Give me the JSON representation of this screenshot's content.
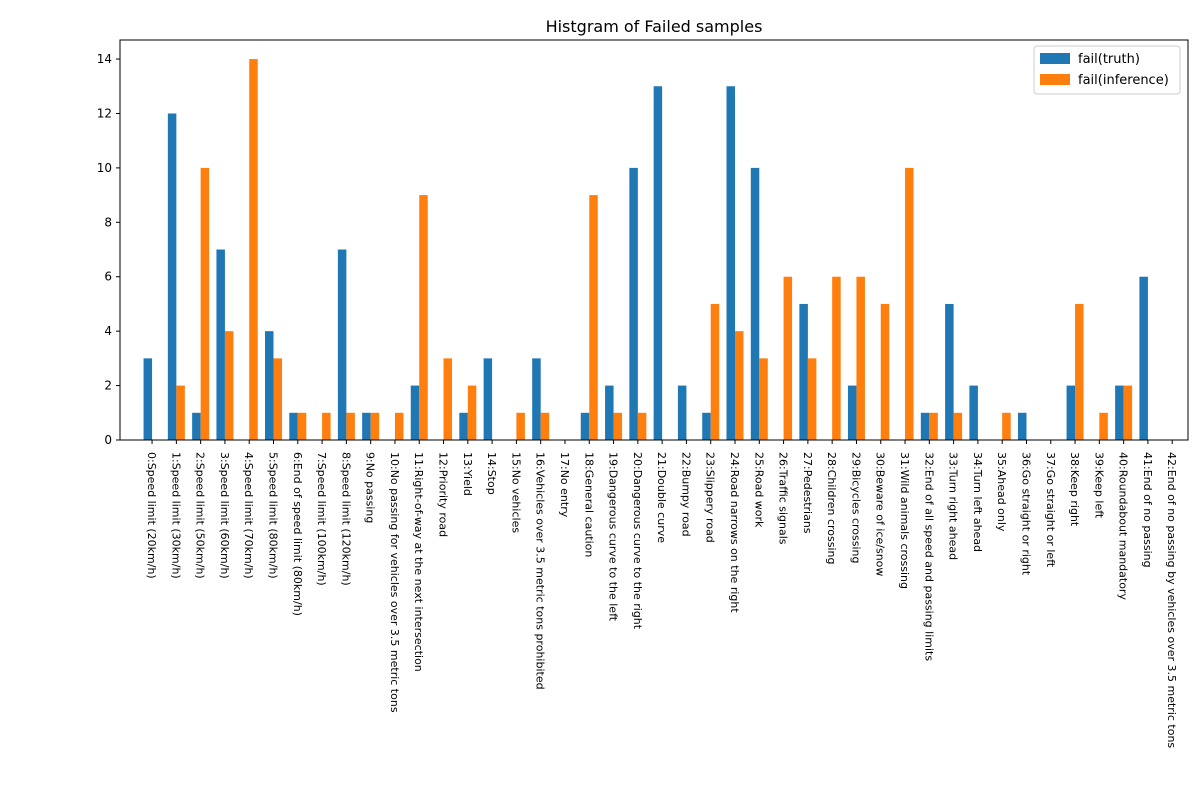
{
  "chart_data": {
    "type": "bar",
    "title": "Histgram of Failed samples",
    "xlabel": "",
    "ylabel": "",
    "ylim": [
      0,
      14.7
    ],
    "yticks": [
      0,
      2,
      4,
      6,
      8,
      10,
      12,
      14
    ],
    "grid": false,
    "legend_position": "top-right",
    "categories": [
      "0:Speed limit (20km/h)",
      "1:Speed limit (30km/h)",
      "2:Speed limit (50km/h)",
      "3:Speed limit (60km/h)",
      "4:Speed limit (70km/h)",
      "5:Speed limit (80km/h)",
      "6:End of speed limit (80km/h)",
      "7:Speed limit (100km/h)",
      "8:Speed limit (120km/h)",
      "9:No passing",
      "10:No passing for vehicles over 3.5 metric tons",
      "11:Right-of-way at the next intersection",
      "12:Priority road",
      "13:Yield",
      "14:Stop",
      "15:No vehicles",
      "16:Vehicles over 3.5 metric tons prohibited",
      "17:No entry",
      "18:General caution",
      "19:Dangerous curve to the left",
      "20:Dangerous curve to the right",
      "21:Double curve",
      "22:Bumpy road",
      "23:Slippery road",
      "24:Road narrows on the right",
      "25:Road work",
      "26:Traffic signals",
      "27:Pedestrians",
      "28:Children crossing",
      "29:Bicycles crossing",
      "30:Beware of ice/snow",
      "31:Wild animals crossing",
      "32:End of all speed and passing limits",
      "33:Turn right ahead",
      "34:Turn left ahead",
      "35:Ahead only",
      "36:Go straight or right",
      "37:Go straight or left",
      "38:Keep right",
      "39:Keep left",
      "40:Roundabout mandatory",
      "41:End of no passing",
      "42:End of no passing by vehicles over 3.5 metric tons"
    ],
    "series": [
      {
        "name": "fail(truth)",
        "color": "#1f77b4",
        "values": [
          3,
          12,
          1,
          7,
          0,
          4,
          1,
          0,
          7,
          1,
          0,
          2,
          0,
          1,
          3,
          0,
          3,
          0,
          1,
          2,
          10,
          13,
          2,
          1,
          13,
          10,
          0,
          5,
          0,
          2,
          0,
          0,
          1,
          5,
          2,
          0,
          1,
          0,
          2,
          0,
          2,
          6,
          0
        ]
      },
      {
        "name": "fail(inference)",
        "color": "#ff7f0e",
        "values": [
          0,
          2,
          10,
          4,
          14,
          3,
          1,
          1,
          1,
          1,
          1,
          9,
          3,
          2,
          0,
          1,
          1,
          0,
          9,
          1,
          1,
          0,
          0,
          5,
          4,
          3,
          6,
          3,
          6,
          6,
          5,
          10,
          1,
          1,
          0,
          1,
          0,
          0,
          5,
          1,
          2,
          0,
          0
        ]
      }
    ]
  }
}
